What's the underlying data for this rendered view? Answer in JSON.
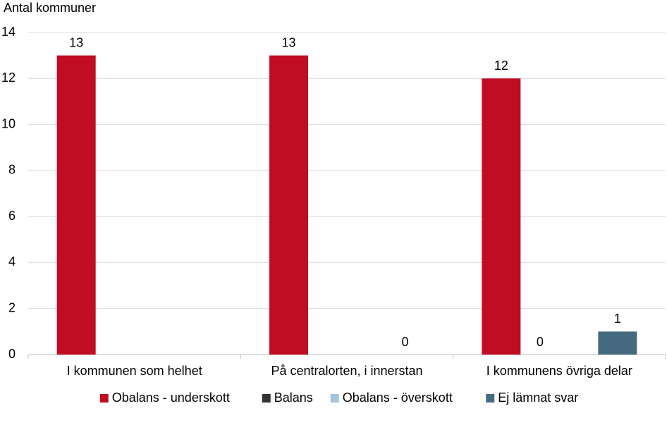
{
  "chart_data": {
    "type": "bar",
    "y_label": "Antal kommuner",
    "categories": [
      "I kommunen som helhet",
      "På centralorten, i innerstan",
      "I kommunens övriga delar"
    ],
    "series": [
      {
        "name": "Obalans - underskott",
        "color": "#c00d23",
        "values": [
          13,
          13,
          12
        ]
      },
      {
        "name": "Balans",
        "color": "#333333",
        "values": [
          null,
          null,
          0
        ]
      },
      {
        "name": "Obalans - överskott",
        "color": "#a6c3dc",
        "values": [
          null,
          null,
          null
        ]
      },
      {
        "name": "Ej lämnat svar",
        "color": "#456a80",
        "values": [
          null,
          0,
          1
        ]
      }
    ],
    "ylim": [
      0,
      14
    ],
    "yticks": [
      0,
      2,
      4,
      6,
      8,
      10,
      12,
      14
    ],
    "grid": true,
    "legend": "bottom"
  }
}
